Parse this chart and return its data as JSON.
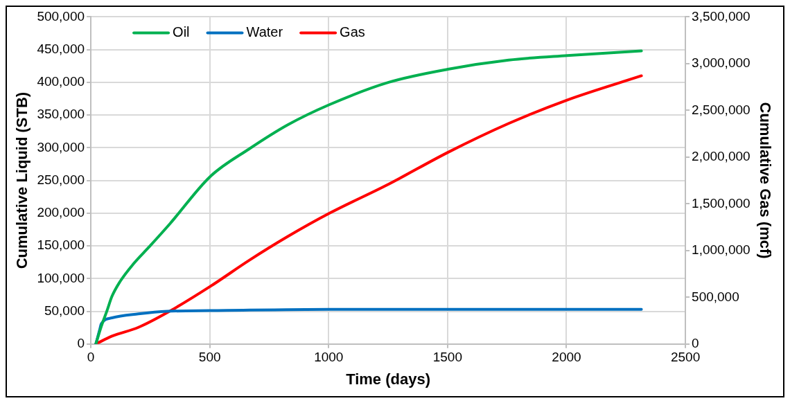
{
  "chart_data": {
    "type": "line",
    "xlabel": "Time (days)",
    "ylabel": "Cumulative Liquid (STB)",
    "y2label": "Cumulative Gas (mcf)",
    "xlim": [
      0,
      2500
    ],
    "xticks": [
      0,
      500,
      1000,
      1500,
      2000,
      2500
    ],
    "ylim": [
      0,
      500000
    ],
    "yticks": [
      0,
      {
        "value": 50000,
        "label": "50,000"
      },
      {
        "value": 100000,
        "label": "100,000"
      },
      {
        "value": 150000,
        "label": "150,000"
      },
      {
        "value": 200000,
        "label": "200,000"
      },
      {
        "value": 250000,
        "label": "250,000"
      },
      {
        "value": 300000,
        "label": "300,000"
      },
      {
        "value": 350000,
        "label": "350,000"
      },
      {
        "value": 400000,
        "label": "400,000"
      },
      {
        "value": 450000,
        "label": "450,000"
      },
      {
        "value": 500000,
        "label": "500,000"
      }
    ],
    "y2lim": [
      0,
      3500000
    ],
    "y2ticks": [
      0,
      {
        "value": 500000,
        "label": "500,000"
      },
      {
        "value": 1000000,
        "label": "1,000,000"
      },
      {
        "value": 1500000,
        "label": "1,500,000"
      },
      {
        "value": 2000000,
        "label": "2,000,000"
      },
      {
        "value": 2500000,
        "label": "2,500,000"
      },
      {
        "value": 3000000,
        "label": "3,000,000"
      },
      {
        "value": 3500000,
        "label": "3,500,000"
      }
    ],
    "grid": true,
    "legend": "top left",
    "marker": "none",
    "line_style": "solid",
    "series": [
      {
        "name": "Oil",
        "color": "#00b050",
        "x": [
          21,
          44,
          67,
          89,
          122,
          178,
          244,
          333,
          502,
          665,
          828,
          1004,
          1252,
          1501,
          1757,
          2002,
          2315
        ],
        "values": [
          0,
          27000,
          50000,
          73000,
          95000,
          122000,
          148000,
          184000,
          256000,
          298000,
          335000,
          366000,
          400000,
          420000,
          434000,
          441000,
          448000
        ]
      },
      {
        "name": "Water",
        "color": "#0070c0",
        "x": [
          21,
          38,
          44,
          89,
          200,
          322,
          502,
          1004,
          2315
        ],
        "values": [
          0,
          23000,
          31000,
          40000,
          46000,
          50000,
          51000,
          53000,
          53000
        ]
      },
      {
        "name": "Gas",
        "color": "#ff0000",
        "axis": "y2",
        "x": [
          21,
          89,
          200,
          322,
          502,
          665,
          828,
          1004,
          1252,
          1501,
          1757,
          2002,
          2315
        ],
        "values": [
          0,
          84000,
          178000,
          337000,
          616000,
          894000,
          1150000,
          1400000,
          1710000,
          2050000,
          2360000,
          2610000,
          2870000
        ]
      }
    ]
  }
}
